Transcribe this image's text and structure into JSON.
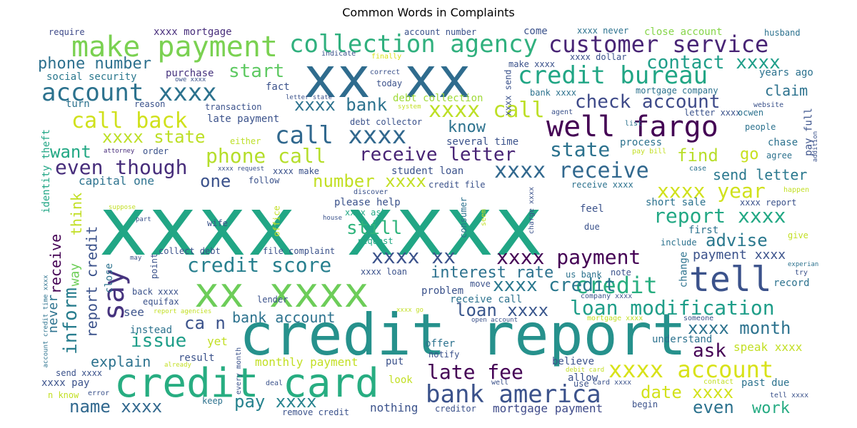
{
  "chart_data": {
    "type": "wordcloud",
    "title": "Common Words in Complaints",
    "words": [
      {
        "text": "xxxx xxxx",
        "color": "#21a685"
      },
      {
        "text": "credit report",
        "color": "#26918c"
      },
      {
        "text": "xx xx",
        "color": "#2f6c8e"
      },
      {
        "text": "credit card",
        "color": "#27ad81"
      },
      {
        "text": "xx xxxx",
        "color": "#6dcd59"
      },
      {
        "text": "make payment",
        "color": "#7ad151"
      },
      {
        "text": "collection agency",
        "color": "#30b07e"
      },
      {
        "text": "well fargo",
        "color": "#440154"
      },
      {
        "text": "tell",
        "color": "#3b528b"
      },
      {
        "text": "customer service",
        "color": "#482475"
      },
      {
        "text": "credit bureau",
        "color": "#21a685"
      },
      {
        "text": "account xxxx",
        "color": "#2c728e"
      },
      {
        "text": "call xxxx",
        "color": "#31688e"
      },
      {
        "text": "bank america",
        "color": "#3b528b"
      },
      {
        "text": "xxxx account",
        "color": "#d8e219"
      },
      {
        "text": "contact xxxx",
        "color": "#1f9e89"
      },
      {
        "text": "call back",
        "color": "#d0e11c"
      },
      {
        "text": "check account",
        "color": "#3e4a89"
      },
      {
        "text": "loan modification",
        "color": "#1f9e89"
      },
      {
        "text": "xxxx call",
        "color": "#bddf26"
      },
      {
        "text": "say",
        "color": "#46337e"
      },
      {
        "text": "xxxx receive",
        "color": "#31688e"
      },
      {
        "text": "receive letter",
        "color": "#482475"
      },
      {
        "text": "credit",
        "color": "#28ae80"
      },
      {
        "text": "phone call",
        "color": "#b5de2b"
      },
      {
        "text": "xxxx payment",
        "color": "#440154"
      },
      {
        "text": "report xxxx",
        "color": "#22a884"
      },
      {
        "text": "late fee",
        "color": "#440154"
      },
      {
        "text": "even though",
        "color": "#472d7b"
      },
      {
        "text": "xxxx xx",
        "color": "#3b528b"
      },
      {
        "text": "credit score",
        "color": "#277f8e"
      },
      {
        "text": "xxxx year",
        "color": "#d0e11c"
      },
      {
        "text": "state",
        "color": "#2c728e"
      },
      {
        "text": "start",
        "color": "#5ec962"
      },
      {
        "text": "number xxxx",
        "color": "#c2df23"
      },
      {
        "text": "loan xxxx",
        "color": "#39568c"
      },
      {
        "text": "date xxxx",
        "color": "#d2e21b"
      },
      {
        "text": "xxxx month",
        "color": "#2c728e"
      },
      {
        "text": "pay xxxx",
        "color": "#26828e"
      },
      {
        "text": "xxxx credit",
        "color": "#2a788e"
      },
      {
        "text": "xxxx state",
        "color": "#bddf26"
      },
      {
        "text": "xxxx bank",
        "color": "#2c728e"
      },
      {
        "text": "still",
        "color": "#2fb47c"
      },
      {
        "text": "advise",
        "color": "#2a788e"
      },
      {
        "text": "inform",
        "color": "#287d8e"
      },
      {
        "text": "issue",
        "color": "#1f9e89"
      },
      {
        "text": "want",
        "color": "#22a884"
      },
      {
        "text": "interest rate",
        "color": "#2c728e"
      },
      {
        "text": "name xxxx",
        "color": "#31688e"
      },
      {
        "text": "even",
        "color": "#2c728e"
      },
      {
        "text": "ask",
        "color": "#440154"
      },
      {
        "text": "know",
        "color": "#2c728e"
      },
      {
        "text": "find",
        "color": "#b8de29"
      },
      {
        "text": "one",
        "color": "#3b528b"
      },
      {
        "text": "ca n",
        "color": "#3b528b"
      },
      {
        "text": "work",
        "color": "#25ab82"
      },
      {
        "text": "phone number",
        "color": "#2d708e"
      },
      {
        "text": "bank account",
        "color": "#2c728e"
      },
      {
        "text": "explain",
        "color": "#2c728e"
      },
      {
        "text": "go",
        "color": "#c8e020"
      },
      {
        "text": "send letter",
        "color": "#2a788e"
      },
      {
        "text": "payment xxxx",
        "color": "#3b528b"
      },
      {
        "text": "claim",
        "color": "#2c728e"
      },
      {
        "text": "speak xxxx",
        "color": "#c2df23"
      },
      {
        "text": "monthly payment",
        "color": "#c2df23"
      },
      {
        "text": "mortgage payment",
        "color": "#3e4a89"
      },
      {
        "text": "nothing",
        "color": "#3b528b"
      },
      {
        "text": "think",
        "color": "#c2df23"
      },
      {
        "text": "report credit",
        "color": "#3b528b"
      },
      {
        "text": "capital one",
        "color": "#2c728e"
      },
      {
        "text": "xxxx mortgage",
        "color": "#472d7b"
      },
      {
        "text": "require",
        "color": "#3e4a89"
      },
      {
        "text": "social security",
        "color": "#2a788e"
      },
      {
        "text": "purchase",
        "color": "#46337e"
      },
      {
        "text": "fact",
        "color": "#3b528b"
      },
      {
        "text": "transaction",
        "color": "#3b528b"
      },
      {
        "text": "late payment",
        "color": "#3b528b"
      },
      {
        "text": "reason",
        "color": "#3b528b"
      },
      {
        "text": "turn",
        "color": "#2c728e"
      },
      {
        "text": "either",
        "color": "#bddf26"
      },
      {
        "text": "never",
        "color": "#2c728e"
      },
      {
        "text": "way",
        "color": "#6ece58"
      },
      {
        "text": "receive",
        "color": "#440154"
      },
      {
        "text": "identity theft",
        "color": "#21a685"
      },
      {
        "text": "close",
        "color": "#2c728e"
      },
      {
        "text": "order",
        "color": "#3b528b"
      },
      {
        "text": "attorney",
        "color": "#472d7b"
      },
      {
        "text": "student loan",
        "color": "#3b528b"
      },
      {
        "text": "please help",
        "color": "#3b528b"
      },
      {
        "text": "xxxx ask",
        "color": "#22a884"
      },
      {
        "text": "request",
        "color": "#22a884"
      },
      {
        "text": "debt collector",
        "color": "#3b528b"
      },
      {
        "text": "several time",
        "color": "#3b528b"
      },
      {
        "text": "debt collection",
        "color": "#a0da39"
      },
      {
        "text": "come",
        "color": "#3b528b"
      },
      {
        "text": "account number",
        "color": "#3b528b"
      },
      {
        "text": "finally",
        "color": "#d8e219"
      },
      {
        "text": "indicate",
        "color": "#3b528b"
      },
      {
        "text": "correct",
        "color": "#3b528b"
      },
      {
        "text": "today",
        "color": "#3b528b"
      },
      {
        "text": "make xxxx",
        "color": "#3b528b"
      },
      {
        "text": "xxxx never",
        "color": "#2c728e"
      },
      {
        "text": "close account",
        "color": "#86d549"
      },
      {
        "text": "husband",
        "color": "#2c728e"
      },
      {
        "text": "xxxx dollar",
        "color": "#3b528b"
      },
      {
        "text": "years ago",
        "color": "#2c728e"
      },
      {
        "text": "mortgage company",
        "color": "#2c728e"
      },
      {
        "text": "bank xxxx",
        "color": "#2c728e"
      },
      {
        "text": "letter xxxx",
        "color": "#3b528b"
      },
      {
        "text": "ocwen",
        "color": "#2c728e"
      },
      {
        "text": "pay full",
        "color": "#3b528b"
      },
      {
        "text": "people",
        "color": "#2c728e"
      },
      {
        "text": "chase",
        "color": "#2c728e"
      },
      {
        "text": "agree",
        "color": "#2c728e"
      },
      {
        "text": "process",
        "color": "#2c728e"
      },
      {
        "text": "pay bill",
        "color": "#c2df23"
      },
      {
        "text": "list",
        "color": "#2c728e"
      },
      {
        "text": "agent",
        "color": "#3b528b"
      },
      {
        "text": "system",
        "color": "#c2df23"
      },
      {
        "text": "case",
        "color": "#2c728e"
      },
      {
        "text": "happen",
        "color": "#c2df23"
      },
      {
        "text": "xxxx report",
        "color": "#3b528b"
      },
      {
        "text": "short sale",
        "color": "#2c728e"
      },
      {
        "text": "first",
        "color": "#2c728e"
      },
      {
        "text": "give",
        "color": "#c2df23"
      },
      {
        "text": "include",
        "color": "#2c728e"
      },
      {
        "text": "change",
        "color": "#2c728e"
      },
      {
        "text": "feel",
        "color": "#3b528b"
      },
      {
        "text": "due",
        "color": "#3b528b"
      },
      {
        "text": "note",
        "color": "#3b528b"
      },
      {
        "text": "try",
        "color": "#3b528b"
      },
      {
        "text": "record",
        "color": "#2c728e"
      },
      {
        "text": "experian",
        "color": "#2c728e"
      },
      {
        "text": "us bank",
        "color": "#2c728e"
      },
      {
        "text": "company xxxx",
        "color": "#3b528b"
      },
      {
        "text": "mortgage xxxx",
        "color": "#c2df23"
      },
      {
        "text": "understand",
        "color": "#2c728e"
      },
      {
        "text": "someone",
        "color": "#3b528b"
      },
      {
        "text": "believe",
        "color": "#3b528b"
      },
      {
        "text": "allow",
        "color": "#3b528b"
      },
      {
        "text": "use",
        "color": "#3b528b"
      },
      {
        "text": "card xxxx",
        "color": "#3b528b"
      },
      {
        "text": "debit card",
        "color": "#c2df23"
      },
      {
        "text": "contact",
        "color": "#c2df23"
      },
      {
        "text": "past due",
        "color": "#2c728e"
      },
      {
        "text": "tell xxxx",
        "color": "#3b528b"
      },
      {
        "text": "begin",
        "color": "#3b528b"
      },
      {
        "text": "offer",
        "color": "#2c728e"
      },
      {
        "text": "notify",
        "color": "#3b528b"
      },
      {
        "text": "creditor",
        "color": "#3b528b"
      },
      {
        "text": "put",
        "color": "#3b528b"
      },
      {
        "text": "look",
        "color": "#c2df23"
      },
      {
        "text": "well",
        "color": "#3b528b"
      },
      {
        "text": "open account",
        "color": "#3b528b"
      },
      {
        "text": "deal",
        "color": "#3b528b"
      },
      {
        "text": "every month",
        "color": "#3b528b"
      },
      {
        "text": "result",
        "color": "#3b528b"
      },
      {
        "text": "remove credit",
        "color": "#3b528b"
      },
      {
        "text": "keep",
        "color": "#2c728e"
      },
      {
        "text": "error",
        "color": "#3b528b"
      },
      {
        "text": "n know",
        "color": "#c2df23"
      },
      {
        "text": "xxxx pay",
        "color": "#3b528b"
      },
      {
        "text": "send xxxx",
        "color": "#3b528b"
      },
      {
        "text": "already",
        "color": "#c2df23"
      },
      {
        "text": "yet",
        "color": "#c2df23"
      },
      {
        "text": "instead",
        "color": "#2c728e"
      },
      {
        "text": "report agencies",
        "color": "#c2df23"
      },
      {
        "text": "equifax",
        "color": "#3b528b"
      },
      {
        "text": "back xxxx",
        "color": "#3b528b"
      },
      {
        "text": "lender",
        "color": "#3b528b"
      },
      {
        "text": "see",
        "color": "#3b528b"
      },
      {
        "text": "point",
        "color": "#3b528b"
      },
      {
        "text": "may",
        "color": "#3b528b"
      },
      {
        "text": "collect debt",
        "color": "#3b528b"
      },
      {
        "text": "file complaint",
        "color": "#3b528b"
      },
      {
        "text": "xxxx loan",
        "color": "#3b528b"
      },
      {
        "text": "problem",
        "color": "#3b528b"
      },
      {
        "text": "move",
        "color": "#3b528b"
      },
      {
        "text": "receive call",
        "color": "#2c728e"
      },
      {
        "text": "xxxx go",
        "color": "#c2df23"
      },
      {
        "text": "wife",
        "color": "#3b528b"
      },
      {
        "text": "part",
        "color": "#3b528b"
      },
      {
        "text": "house",
        "color": "#3b528b"
      },
      {
        "text": "office",
        "color": "#c2df23"
      },
      {
        "text": "consumer",
        "color": "#2c728e"
      },
      {
        "text": "seem",
        "color": "#c2df23"
      },
      {
        "text": "charge xxxx",
        "color": "#3b528b"
      },
      {
        "text": "discover",
        "color": "#3b528b"
      },
      {
        "text": "credit file",
        "color": "#3b528b"
      },
      {
        "text": "receive xxxx",
        "color": "#2c728e"
      },
      {
        "text": "follow",
        "color": "#3b528b"
      },
      {
        "text": "xxxx make",
        "color": "#3b528b"
      },
      {
        "text": "xxxx request",
        "color": "#3b528b"
      },
      {
        "text": "suppose",
        "color": "#c2df23"
      },
      {
        "text": "account credit time xxxx",
        "color": "#2c728e"
      },
      {
        "text": "owe xxxx",
        "color": "#3b528b"
      },
      {
        "text": "letter state",
        "color": "#3b528b"
      },
      {
        "text": "xxxx send",
        "color": "#3b528b"
      },
      {
        "text": "website",
        "color": "#3b528b"
      },
      {
        "text": "addition",
        "color": "#3b528b"
      }
    ]
  }
}
